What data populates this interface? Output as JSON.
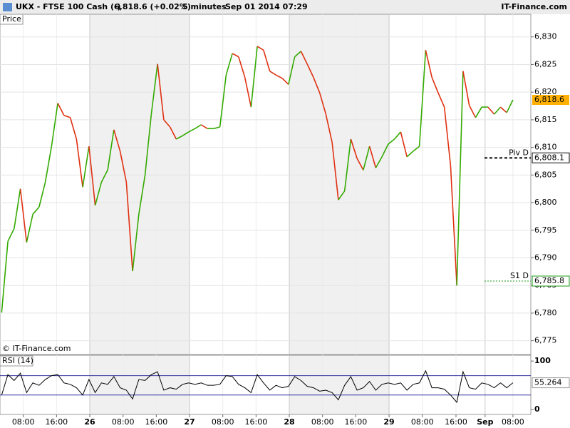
{
  "header": {
    "symbol": "UKX - FTSE 100 Cash (-)",
    "quote": "6,818.6 (+0.02%)",
    "interval": "5 minutes",
    "datetime": "Sep 01 2014 07:29",
    "brand": "IT-Finance.com"
  },
  "chart_data": [
    {
      "type": "line",
      "title": "Price",
      "watermark": "© IT-Finance.com",
      "up_color": "#33aa00",
      "down_color": "#e03010",
      "x": [
        2.8,
        4.3,
        5.8,
        7.3,
        8.8,
        10.3,
        11.8,
        13.3,
        14.8,
        16.3,
        17.8,
        19.3,
        20.8,
        22.3,
        23.8,
        25.3,
        26.8,
        28.3,
        29.8,
        31.3,
        32.8,
        34.3,
        35.8,
        37.3,
        38.8,
        40.3,
        41.8,
        43.3,
        44.8,
        46.3,
        47.8,
        49.3,
        50.8,
        52.3,
        53.8,
        55.3,
        56.8,
        58.3,
        59.8,
        61.3,
        62.8,
        64.3,
        65.8,
        67.3,
        68.8,
        70.3,
        71.8,
        73.3,
        74.8,
        76.3,
        77.8,
        79.3,
        80.8,
        82.3,
        83.8,
        85.3,
        86.8,
        88.3,
        89.8,
        91.3,
        92.8,
        94.3,
        95.8,
        97.3,
        98.8,
        100.3,
        101.8,
        103.3,
        104.8,
        106.3,
        107.8,
        109.3,
        110.8,
        112.3,
        113.8,
        115.3,
        116.8,
        118.3,
        119.8,
        121.3,
        122.8,
        124.3,
        125.8
      ],
      "values": [
        6780.1,
        6793.0,
        6795.3,
        6802.5,
        6792.8,
        6797.9,
        6799.2,
        6803.7,
        6810.2,
        6818.0,
        6815.8,
        6815.4,
        6811.5,
        6802.8,
        6810.2,
        6799.5,
        6803.7,
        6805.9,
        6813.2,
        6809.3,
        6803.7,
        6787.6,
        6797.9,
        6805.0,
        6816.0,
        6825.1,
        6815.0,
        6813.7,
        6811.5,
        6812.1,
        6812.8,
        6813.4,
        6814.1,
        6813.4,
        6813.4,
        6813.7,
        6823.1,
        6827.0,
        6826.4,
        6822.7,
        6817.3,
        6828.3,
        6827.6,
        6823.8,
        6823.1,
        6822.5,
        6821.4,
        6826.4,
        6827.4,
        6825.1,
        6822.7,
        6819.9,
        6816.0,
        6810.9,
        6800.5,
        6802.1,
        6811.5,
        6808.0,
        6805.9,
        6810.2,
        6806.3,
        6808.3,
        6810.6,
        6811.5,
        6812.8,
        6808.3,
        6809.3,
        6810.2,
        6827.6,
        6822.7,
        6819.9,
        6817.3,
        6806.7,
        6785.0,
        6823.8,
        6817.6,
        6815.4,
        6817.3,
        6817.3,
        6816.0,
        6817.3,
        6816.3,
        6818.6
      ],
      "last_label": "6,818.6",
      "last_color": "#ffb000",
      "levels": [
        {
          "name": "Piv D",
          "value": 6808.1,
          "label": "6,808.1",
          "color": "#000000"
        },
        {
          "name": "S1 D",
          "value": 6785.8,
          "label": "6,785.8",
          "color": "#1a9b1a"
        }
      ],
      "xlim": [
        2.4,
        130.1
      ],
      "xticks": [
        {
          "value": 8,
          "label": "08:00"
        },
        {
          "value": 16,
          "label": "16:00"
        },
        {
          "value": 24,
          "label": "26"
        },
        {
          "value": 32,
          "label": "08:00"
        },
        {
          "value": 40,
          "label": "16:00"
        },
        {
          "value": 48,
          "label": "27"
        },
        {
          "value": 56,
          "label": "08:00"
        },
        {
          "value": 64,
          "label": "16:00"
        },
        {
          "value": 72,
          "label": "28"
        },
        {
          "value": 80,
          "label": "08:00"
        },
        {
          "value": 88,
          "label": "16:00"
        },
        {
          "value": 96,
          "label": "29"
        },
        {
          "value": 104,
          "label": "08:00"
        },
        {
          "value": 112.1,
          "label": "16:00"
        },
        {
          "value": 119.1,
          "label": "Sep"
        },
        {
          "value": 125.8,
          "label": "08:00"
        }
      ],
      "ylim": [
        6772.5,
        6834.1
      ],
      "yticks": [
        {
          "value": 6775,
          "label": "6,775"
        },
        {
          "value": 6780,
          "label": "6,780"
        },
        {
          "value": 6785,
          "label": "6,785"
        },
        {
          "value": 6790,
          "label": "6,790"
        },
        {
          "value": 6795,
          "label": "6,795"
        },
        {
          "value": 6800,
          "label": "6,800"
        },
        {
          "value": 6805,
          "label": "6,805"
        },
        {
          "value": 6810,
          "label": "6,810"
        },
        {
          "value": 6815,
          "label": "6,815"
        },
        {
          "value": 6820,
          "label": "6,820"
        },
        {
          "value": 6825,
          "label": "6,825"
        },
        {
          "value": 6830,
          "label": "6,830"
        }
      ],
      "grid": true
    },
    {
      "type": "line",
      "title": "RSI (14)",
      "color": "#000000",
      "level_color": "#3030a0",
      "values": [
        30,
        72,
        60,
        75,
        35,
        55,
        50,
        62,
        70,
        72,
        55,
        52,
        45,
        30,
        62,
        35,
        55,
        52,
        68,
        45,
        40,
        22,
        62,
        60,
        72,
        78,
        40,
        45,
        42,
        52,
        55,
        52,
        55,
        50,
        50,
        52,
        70,
        68,
        52,
        45,
        35,
        72,
        55,
        40,
        50,
        45,
        48,
        68,
        60,
        48,
        45,
        38,
        40,
        35,
        20,
        50,
        68,
        40,
        45,
        58,
        40,
        52,
        55,
        52,
        55,
        40,
        52,
        55,
        80,
        45,
        45,
        42,
        30,
        15,
        78,
        45,
        42,
        55,
        52,
        45,
        55,
        45,
        55.264
      ],
      "levels": [
        70,
        30
      ],
      "ylim": [
        -10,
        112
      ],
      "yticks": [
        100,
        0
      ]
    }
  ]
}
